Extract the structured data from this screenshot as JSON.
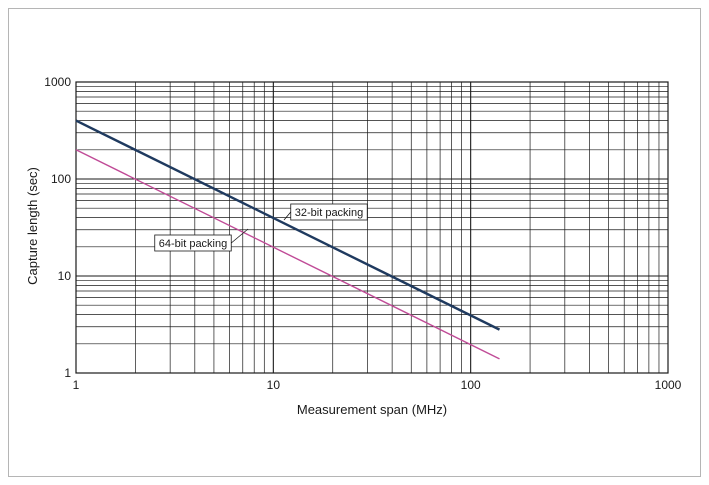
{
  "chart_data": {
    "type": "line",
    "title": "",
    "xlabel": "Measurement span (MHz)",
    "ylabel": "Capture length (sec)",
    "x_scale": "log",
    "y_scale": "log",
    "xlim": [
      1,
      1000
    ],
    "ylim": [
      1,
      1000
    ],
    "grid": true,
    "x_ticks": [
      "1",
      "10",
      "100",
      "1000"
    ],
    "y_ticks": [
      "1",
      "10",
      "100",
      "1000"
    ],
    "series": [
      {
        "name": "32-bit packing",
        "color": "#1f3a5f",
        "x": [
          1,
          140
        ],
        "y": [
          400,
          2.8
        ]
      },
      {
        "name": "64-bit packing",
        "color": "#c04b97",
        "x": [
          1,
          140
        ],
        "y": [
          200,
          1.4
        ]
      }
    ]
  },
  "colors": {
    "grid": "#1a1a1a",
    "frame": "#b5b5b5"
  }
}
